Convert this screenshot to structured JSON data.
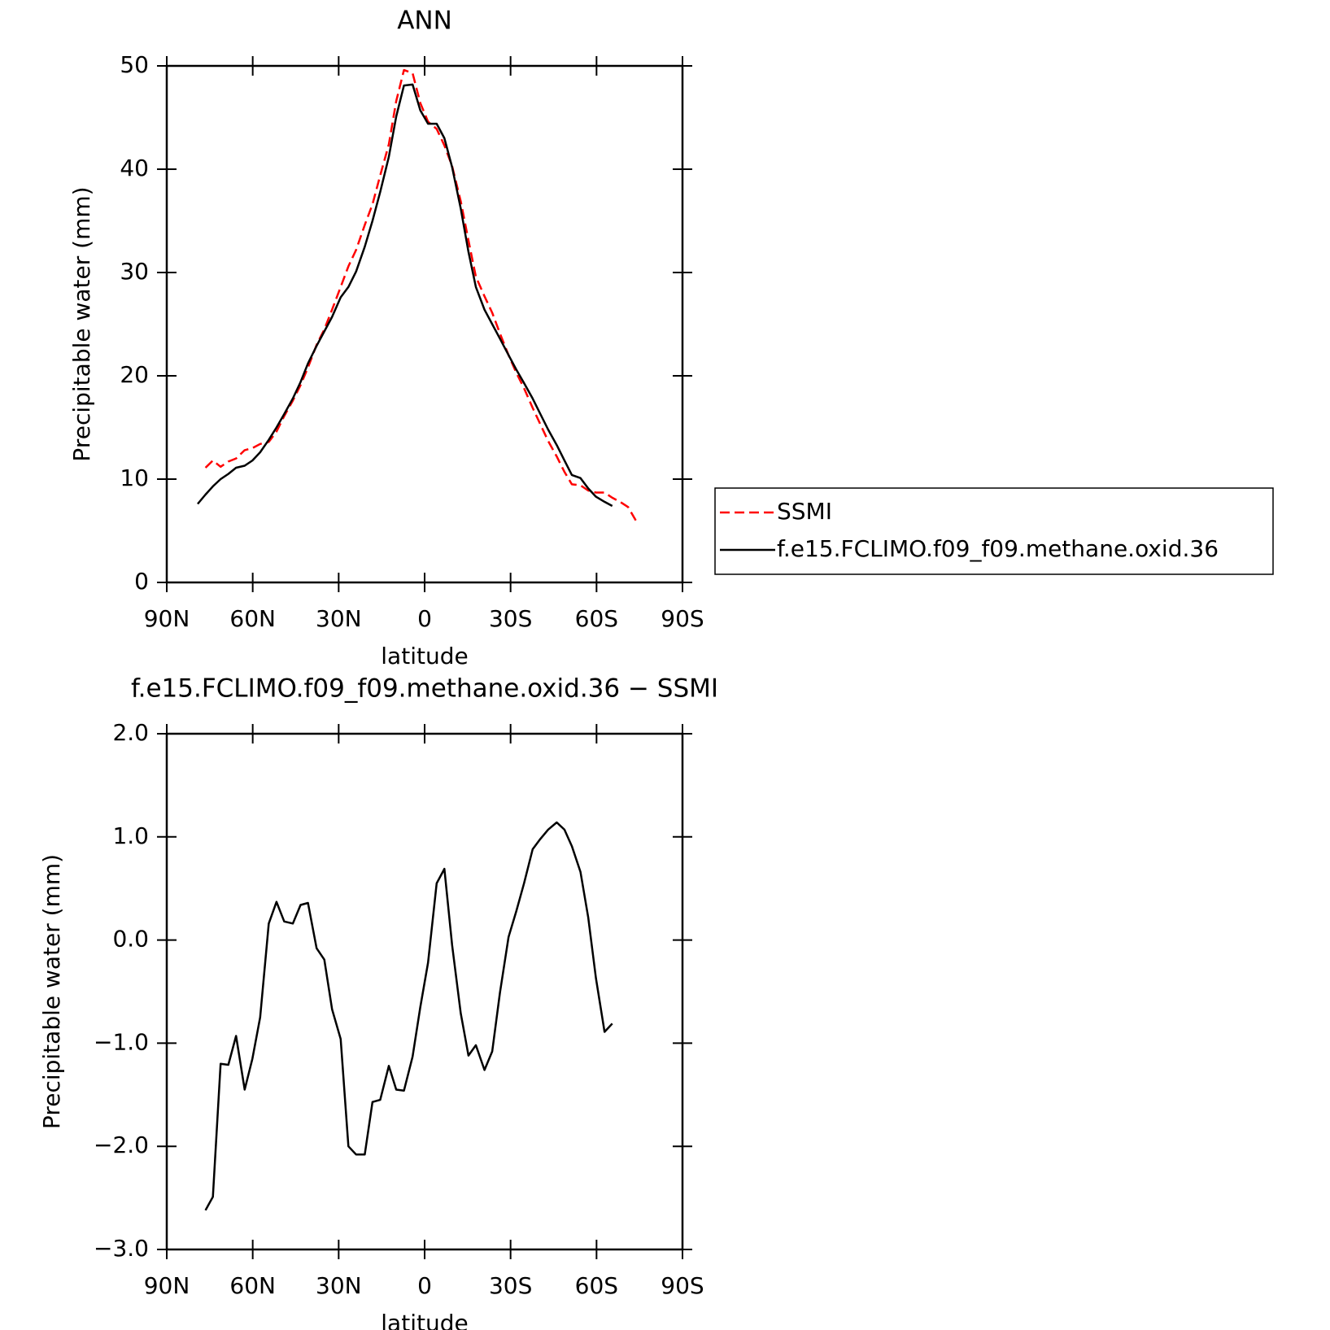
{
  "chart_data": [
    {
      "type": "line",
      "title": "ANN",
      "xlabel": "latitude",
      "ylabel": "Precipitable water (mm)",
      "xlim": [
        90,
        -90
      ],
      "xticks": [
        {
          "value": 90,
          "label": "90N"
        },
        {
          "value": 60,
          "label": "60N"
        },
        {
          "value": 30,
          "label": "30N"
        },
        0,
        {
          "value": -30,
          "label": "30S"
        },
        {
          "value": -60,
          "label": "60S"
        },
        {
          "value": -90,
          "label": "90S"
        }
      ],
      "ylim": [
        0,
        50
      ],
      "yticks": [
        0,
        10,
        20,
        30,
        40,
        50
      ],
      "legend": "right",
      "series": [
        {
          "name": "SSMI",
          "color": "#ff0000",
          "dash": true,
          "x": [
            76.5,
            73.9,
            71.2,
            68.5,
            65.8,
            62.8,
            60.1,
            57.4,
            54.4,
            51.7,
            49.0,
            46.0,
            43.3,
            40.7,
            37.7,
            35.0,
            32.3,
            29.3,
            26.6,
            23.9,
            20.9,
            18.2,
            15.5,
            12.5,
            9.9,
            7.2,
            4.2,
            1.5,
            -1.2,
            -4.2,
            -6.9,
            -9.6,
            -12.6,
            -15.3,
            -17.9,
            -20.9,
            -23.6,
            -26.3,
            -29.3,
            -32.0,
            -34.7,
            -37.7,
            -40.4,
            -43.1,
            -46.1,
            -48.8,
            -51.4,
            -54.4,
            -57.1,
            -59.8,
            -62.8,
            -65.5,
            -68.2,
            -71.0,
            -73.7
          ],
          "values": [
            11.1,
            11.8,
            11.2,
            11.7,
            12.0,
            12.8,
            13.0,
            13.4,
            13.6,
            14.6,
            16.1,
            17.6,
            19.1,
            20.8,
            23.0,
            24.5,
            26.4,
            28.6,
            30.6,
            32.2,
            34.6,
            36.6,
            39.4,
            42.4,
            46.6,
            49.6,
            49.3,
            46.4,
            44.6,
            43.9,
            42.3,
            40.3,
            36.9,
            33.1,
            29.6,
            27.7,
            26.1,
            24.1,
            22.0,
            20.3,
            18.8,
            16.9,
            15.3,
            13.7,
            12.2,
            10.7,
            9.5,
            9.4,
            8.9,
            8.7,
            8.7,
            8.2,
            7.8,
            7.3,
            6.0
          ]
        },
        {
          "name": "f.e15.FCLIMO.f09_f09.methane.oxid.36",
          "color": "#000000",
          "dash": false,
          "x": [
            79.2,
            76.5,
            73.9,
            71.2,
            68.5,
            65.8,
            62.8,
            60.1,
            57.4,
            54.4,
            51.7,
            49.0,
            46.0,
            43.3,
            40.7,
            37.7,
            35.0,
            32.3,
            29.3,
            26.6,
            23.9,
            20.9,
            18.2,
            15.5,
            12.5,
            9.9,
            7.2,
            4.2,
            1.5,
            -1.2,
            -4.2,
            -6.9,
            -9.6,
            -12.6,
            -15.3,
            -17.9,
            -20.9,
            -23.6,
            -26.3,
            -29.3,
            -32.0,
            -34.7,
            -37.7,
            -40.4,
            -43.1,
            -46.1,
            -48.8,
            -51.4,
            -54.4,
            -57.1,
            -59.8,
            -62.8,
            -65.5
          ],
          "values": [
            7.6,
            8.5,
            9.3,
            10.0,
            10.5,
            11.1,
            11.3,
            11.8,
            12.6,
            13.8,
            15.0,
            16.3,
            17.8,
            19.4,
            21.2,
            22.9,
            24.3,
            25.7,
            27.6,
            28.6,
            30.1,
            32.5,
            35.0,
            37.8,
            41.2,
            45.1,
            48.1,
            48.2,
            45.7,
            44.4,
            44.4,
            43.0,
            40.2,
            36.2,
            32.0,
            28.6,
            26.4,
            25.0,
            23.6,
            22.0,
            20.6,
            19.3,
            17.8,
            16.3,
            14.8,
            13.3,
            11.8,
            10.4,
            10.1,
            9.1,
            8.3,
            7.8,
            7.4
          ]
        }
      ]
    },
    {
      "type": "line",
      "title": "f.e15.FCLIMO.f09_f09.methane.oxid.36 − SSMI",
      "xlabel": "latitude",
      "ylabel": "Precipitable water (mm)",
      "xlim": [
        90,
        -90
      ],
      "xticks": [
        {
          "value": 90,
          "label": "90N"
        },
        {
          "value": 60,
          "label": "60N"
        },
        {
          "value": 30,
          "label": "30N"
        },
        0,
        {
          "value": -30,
          "label": "30S"
        },
        {
          "value": -60,
          "label": "60S"
        },
        {
          "value": -90,
          "label": "90S"
        }
      ],
      "ylim": [
        -3,
        2
      ],
      "yticks": [
        {
          "value": -3,
          "label": "−3.0"
        },
        {
          "value": -2,
          "label": "−2.0"
        },
        {
          "value": -1,
          "label": "−1.0"
        },
        {
          "value": 0,
          "label": "0.0"
        },
        {
          "value": 1,
          "label": "1.0"
        },
        {
          "value": 2,
          "label": "2.0"
        }
      ],
      "series": [
        {
          "color": "#000000",
          "dash": false,
          "x": [
            76.5,
            73.9,
            71.2,
            68.5,
            65.8,
            62.8,
            60.1,
            57.4,
            54.4,
            51.7,
            49.0,
            46.0,
            43.3,
            40.7,
            37.7,
            35.0,
            32.3,
            29.3,
            26.6,
            23.9,
            20.9,
            18.2,
            15.5,
            12.5,
            9.9,
            7.2,
            4.2,
            1.5,
            -1.2,
            -4.2,
            -6.9,
            -9.6,
            -12.6,
            -15.3,
            -17.9,
            -20.9,
            -23.6,
            -26.3,
            -29.3,
            -32.0,
            -34.7,
            -37.7,
            -40.4,
            -43.1,
            -46.1,
            -48.8,
            -51.4,
            -54.4,
            -57.1,
            -59.8,
            -62.8,
            -65.5
          ],
          "values": [
            -2.62,
            -2.49,
            -1.2,
            -1.21,
            -0.93,
            -1.45,
            -1.15,
            -0.75,
            0.16,
            0.37,
            0.18,
            0.16,
            0.34,
            0.36,
            -0.08,
            -0.19,
            -0.67,
            -0.96,
            -2.0,
            -2.08,
            -2.08,
            -1.57,
            -1.55,
            -1.22,
            -1.45,
            -1.46,
            -1.13,
            -0.65,
            -0.22,
            0.55,
            0.69,
            -0.05,
            -0.71,
            -1.12,
            -1.02,
            -1.26,
            -1.08,
            -0.51,
            0.03,
            0.28,
            0.55,
            0.88,
            0.98,
            1.07,
            1.14,
            1.07,
            0.91,
            0.66,
            0.22,
            -0.37,
            -0.89,
            -0.81
          ]
        }
      ]
    }
  ]
}
